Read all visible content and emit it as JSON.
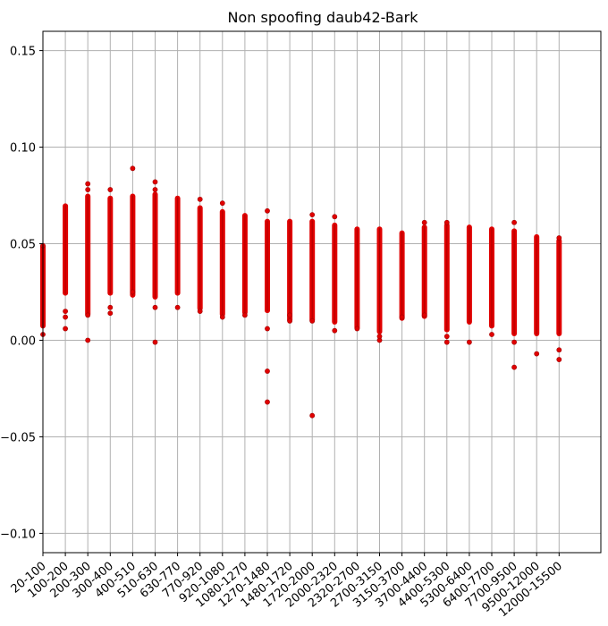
{
  "chart_data": {
    "type": "scatter",
    "title": "Non spoofing daub42-Bark",
    "xlabel": "",
    "ylabel": "",
    "categories": [
      "20-100",
      "100-200",
      "200-300",
      "300-400",
      "400-510",
      "510-630",
      "630-770",
      "770-920",
      "920-1080",
      "1080-1270",
      "1270-1480",
      "1480-1720",
      "1720-2000",
      "2000-2320",
      "2320-2700",
      "2700-3150",
      "3150-3700",
      "3700-4400",
      "4400-5300",
      "5300-6400",
      "6400-7700",
      "7700-9500",
      "9500-12000",
      "12000-15500"
    ],
    "ylim": [
      -0.11,
      0.16
    ],
    "yticks": [
      -0.1,
      -0.05,
      0.0,
      0.05,
      0.1,
      0.15
    ],
    "ytick_labels": [
      "−0.10",
      "−0.05",
      "0.00",
      "0.05",
      "0.10",
      "0.15"
    ],
    "grid": true,
    "marker_color": "#e00000",
    "series": [
      {
        "column_ranges": [
          [
            0.007,
            0.049
          ],
          [
            0.024,
            0.07
          ],
          [
            0.013,
            0.075
          ],
          [
            0.024,
            0.074
          ],
          [
            0.023,
            0.075
          ],
          [
            0.022,
            0.076
          ],
          [
            0.024,
            0.074
          ],
          [
            0.016,
            0.069
          ],
          [
            0.013,
            0.067
          ],
          [
            0.014,
            0.065
          ],
          [
            0.015,
            0.062
          ],
          [
            0.01,
            0.062
          ],
          [
            0.01,
            0.062
          ],
          [
            0.009,
            0.06
          ],
          [
            0.006,
            0.058
          ],
          [
            0.004,
            0.058
          ],
          [
            0.011,
            0.056
          ],
          [
            0.012,
            0.059
          ],
          [
            0.005,
            0.06
          ],
          [
            0.009,
            0.059
          ],
          [
            0.007,
            0.058
          ],
          [
            0.003,
            0.057
          ],
          [
            0.003,
            0.054
          ],
          [
            0.003,
            0.052
          ]
        ],
        "outliers": [
          [
            0,
            0.003
          ],
          [
            0,
            0.049
          ],
          [
            1,
            0.012
          ],
          [
            1,
            0.015
          ],
          [
            1,
            0.006
          ],
          [
            2,
            0.081
          ],
          [
            2,
            0.078
          ],
          [
            2,
            0.0
          ],
          [
            2,
            0.013
          ],
          [
            3,
            0.078
          ],
          [
            3,
            0.014
          ],
          [
            3,
            0.017
          ],
          [
            4,
            0.089
          ],
          [
            4,
            0.025
          ],
          [
            5,
            0.082
          ],
          [
            5,
            0.078
          ],
          [
            5,
            0.017
          ],
          [
            5,
            -0.001
          ],
          [
            6,
            0.017
          ],
          [
            7,
            0.073
          ],
          [
            7,
            0.015
          ],
          [
            8,
            0.071
          ],
          [
            8,
            0.012
          ],
          [
            9,
            0.013
          ],
          [
            10,
            0.067
          ],
          [
            10,
            0.006
          ],
          [
            10,
            -0.016
          ],
          [
            10,
            -0.032
          ],
          [
            11,
            0.01
          ],
          [
            11,
            0.013
          ],
          [
            12,
            0.065
          ],
          [
            12,
            0.01
          ],
          [
            12,
            -0.039
          ],
          [
            13,
            0.064
          ],
          [
            13,
            0.005
          ],
          [
            14,
            0.006
          ],
          [
            15,
            0.0
          ],
          [
            15,
            0.002
          ],
          [
            16,
            0.012
          ],
          [
            17,
            0.061
          ],
          [
            17,
            0.013
          ],
          [
            18,
            0.061
          ],
          [
            18,
            -0.001
          ],
          [
            18,
            0.002
          ],
          [
            19,
            -0.001
          ],
          [
            20,
            0.003
          ],
          [
            21,
            0.061
          ],
          [
            21,
            -0.001
          ],
          [
            21,
            -0.014
          ],
          [
            22,
            -0.007
          ],
          [
            23,
            0.053
          ],
          [
            23,
            -0.005
          ],
          [
            23,
            -0.01
          ]
        ]
      }
    ]
  }
}
